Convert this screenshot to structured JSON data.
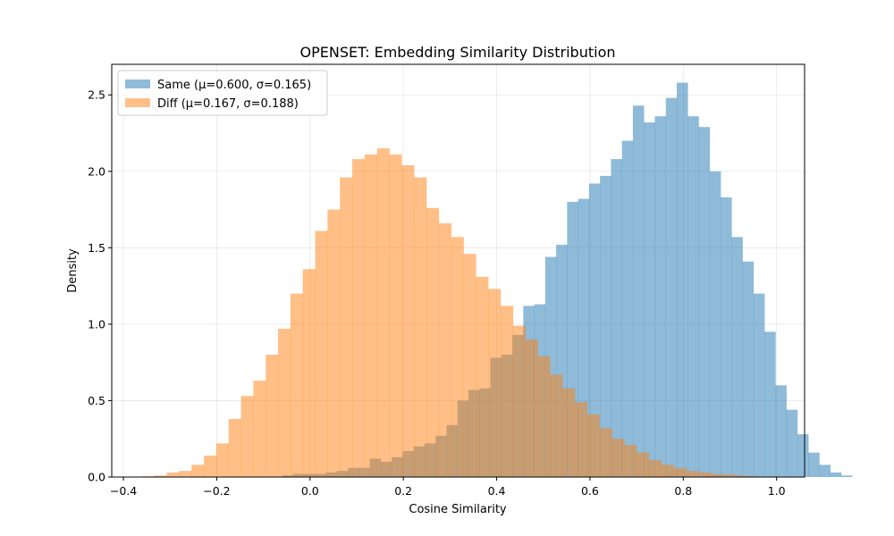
{
  "chart_data": {
    "type": "bar",
    "title": "OPENSET: Embedding Similarity Distribution",
    "xlabel": "Cosine Similarity",
    "ylabel": "Density",
    "xlim": [
      -0.425,
      1.06
    ],
    "ylim": [
      0,
      2.7
    ],
    "xticks": [
      -0.4,
      -0.2,
      0.0,
      0.2,
      0.4,
      0.6,
      0.8,
      1.0
    ],
    "xtick_labels": [
      "−0.4",
      "−0.2",
      "0.0",
      "0.2",
      "0.4",
      "0.6",
      "0.8",
      "1.0"
    ],
    "yticks": [
      0.0,
      0.5,
      1.0,
      1.5,
      2.0,
      2.5
    ],
    "ytick_labels": [
      "0.0",
      "0.5",
      "1.0",
      "1.5",
      "2.0",
      "2.5"
    ],
    "grid": true,
    "legend_position": "top-left",
    "series": [
      {
        "name": "Same (μ=0.600, σ=0.165)",
        "color": "#1f77b4",
        "alpha": 0.5,
        "bin_start": -0.06,
        "bin_width": 0.0235,
        "values": [
          0.01,
          0.02,
          0.02,
          0.02,
          0.03,
          0.04,
          0.06,
          0.06,
          0.12,
          0.1,
          0.13,
          0.17,
          0.2,
          0.22,
          0.27,
          0.34,
          0.5,
          0.57,
          0.58,
          0.78,
          0.8,
          0.93,
          1.12,
          1.13,
          1.44,
          1.52,
          1.8,
          1.82,
          1.92,
          1.97,
          2.08,
          2.2,
          2.43,
          2.32,
          2.36,
          2.48,
          2.58,
          2.36,
          2.29,
          2.0,
          1.83,
          1.57,
          1.41,
          1.2,
          0.95,
          0.6,
          0.44,
          0.28,
          0.16,
          0.08,
          0.03,
          0.01
        ]
      },
      {
        "name": "Diff (μ=0.167, σ=0.188)",
        "color": "#ff7f0e",
        "alpha": 0.5,
        "bin_start": -0.36,
        "bin_width": 0.0265,
        "values": [
          0.005,
          0.01,
          0.03,
          0.04,
          0.08,
          0.14,
          0.22,
          0.38,
          0.53,
          0.63,
          0.8,
          0.97,
          1.2,
          1.36,
          1.61,
          1.75,
          1.96,
          2.08,
          2.11,
          2.15,
          2.11,
          2.04,
          1.96,
          1.76,
          1.66,
          1.57,
          1.46,
          1.31,
          1.23,
          1.12,
          0.99,
          0.9,
          0.79,
          0.67,
          0.58,
          0.49,
          0.41,
          0.32,
          0.25,
          0.21,
          0.16,
          0.11,
          0.08,
          0.06,
          0.04,
          0.03,
          0.02,
          0.015,
          0.01,
          0.005
        ]
      }
    ]
  }
}
